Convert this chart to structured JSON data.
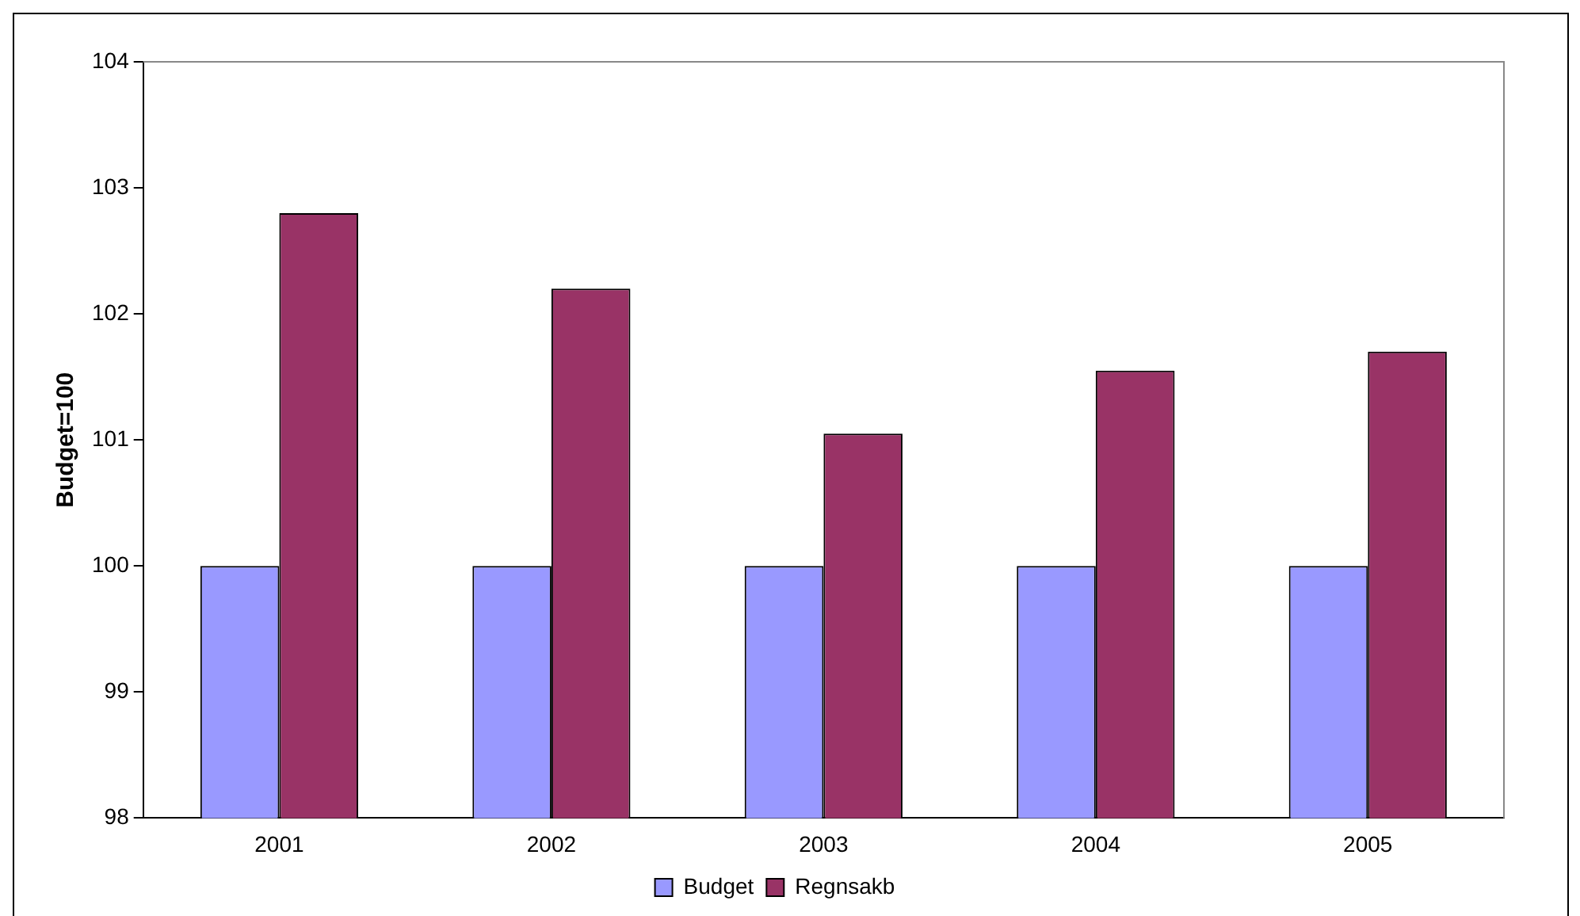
{
  "chart_data": {
    "type": "bar",
    "ylabel": "Budget=100",
    "categories": [
      "2001",
      "2002",
      "2003",
      "2004",
      "2005"
    ],
    "series": [
      {
        "name": "Budget",
        "color": "#9999ff",
        "values": [
          100,
          100,
          100,
          100,
          100
        ]
      },
      {
        "name": "Regnsakb",
        "color": "#993366",
        "values": [
          102.8,
          102.2,
          101.05,
          101.55,
          101.7
        ]
      }
    ],
    "ylim": [
      98,
      104
    ],
    "yticks": [
      98,
      99,
      100,
      101,
      102,
      103,
      104
    ],
    "grid": false,
    "legend": "bottom"
  }
}
